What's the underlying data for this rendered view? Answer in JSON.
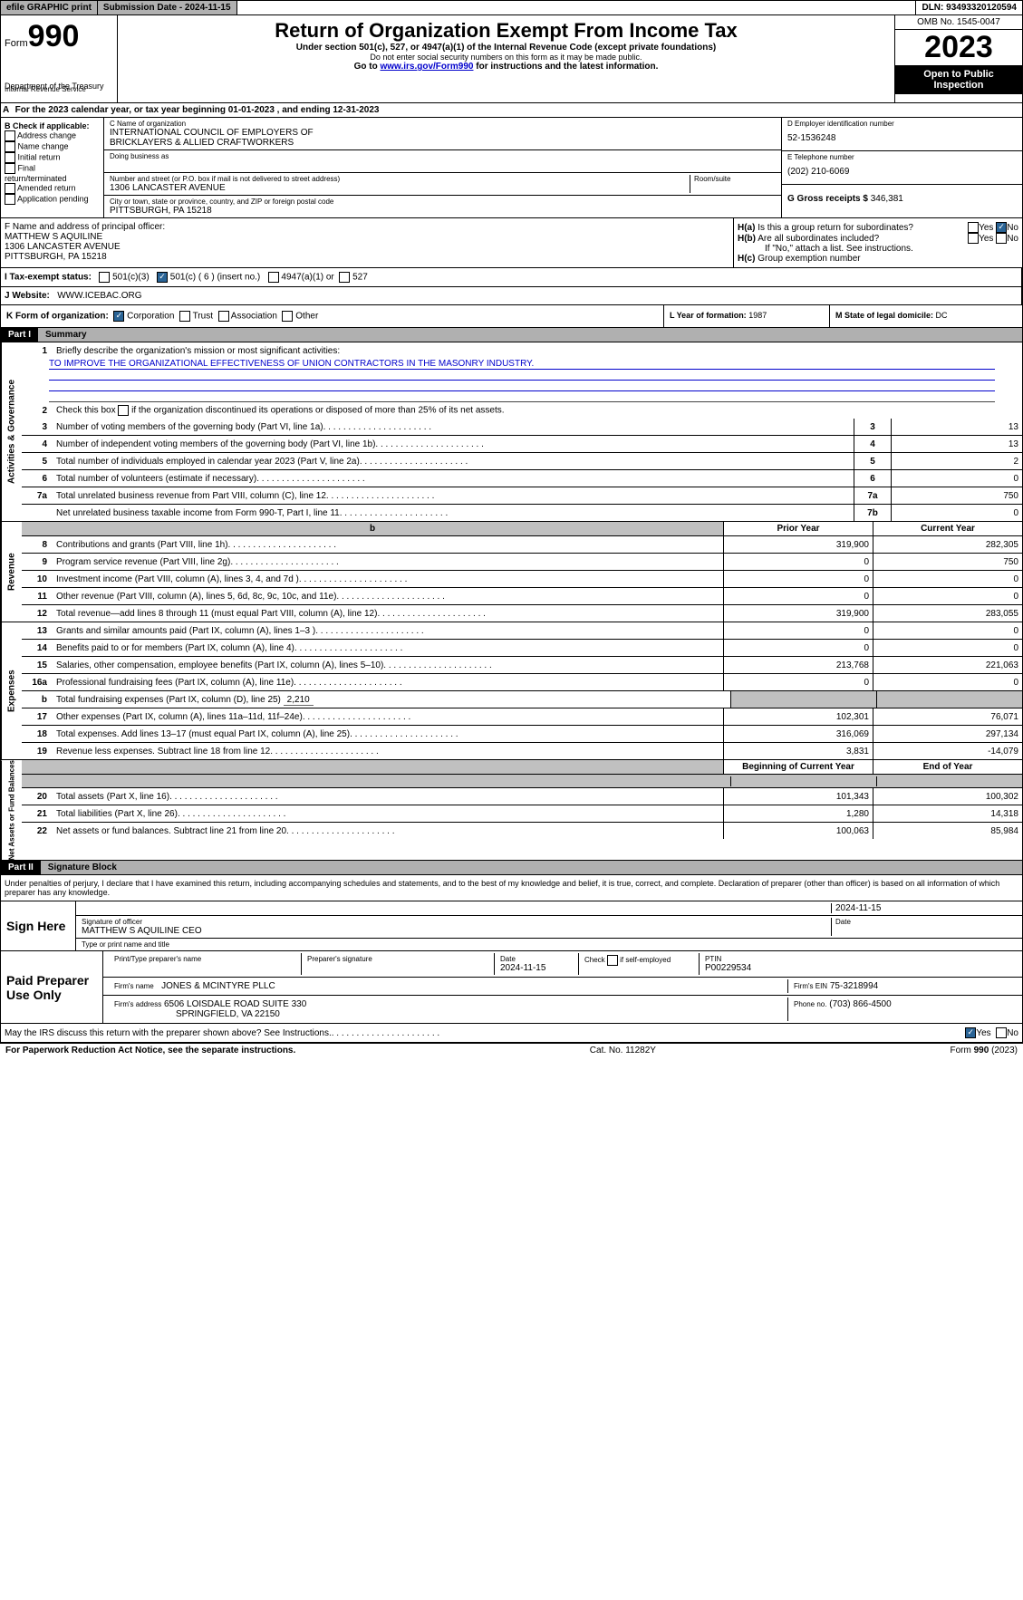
{
  "top_bar": {
    "efile": "efile GRAPHIC print",
    "submission": "Submission Date - 2024-11-15",
    "dln": "DLN: 93493320120594"
  },
  "header": {
    "form_word": "Form",
    "form_no": "990",
    "dept1": "Department of the Treasury",
    "dept2": "Internal Revenue Service",
    "title": "Return of Organization Exempt From Income Tax",
    "sub1": "Under section 501(c), 527, or 4947(a)(1) of the Internal Revenue Code (except private foundations)",
    "sub2": "Do not enter social security numbers on this form as it may be made public.",
    "sub3_pre": "Go to ",
    "sub3_link": "www.irs.gov/Form990",
    "sub3_post": " for instructions and the latest information.",
    "omb": "OMB No. 1545-0047",
    "year": "2023",
    "inspect": "Open to Public Inspection"
  },
  "row_a": {
    "text": "For the 2023 calendar year, or tax year beginning 01-01-2023    , and ending 12-31-2023",
    "a_label": "A"
  },
  "col_b": {
    "title": "B Check if applicable:",
    "items": [
      "Address change",
      "Name change",
      "Initial return",
      "Final return/terminated",
      "Amended return",
      "Application pending"
    ]
  },
  "col_c": {
    "c_label": "C Name of organization",
    "name1": "INTERNATIONAL COUNCIL OF EMPLOYERS OF",
    "name2": "BRICKLAYERS & ALLIED CRAFTWORKERS",
    "dba": "Doing business as",
    "addr_label": "Number and street (or P.O. box if mail is not delivered to street address)",
    "addr": "1306 LANCASTER AVENUE",
    "room_label": "Room/suite",
    "city_label": "City or town, state or province, country, and ZIP or foreign postal code",
    "city": "PITTSBURGH, PA  15218"
  },
  "col_de": {
    "d_label": "D Employer identification number",
    "ein": "52-1536248",
    "e_label": "E Telephone number",
    "phone": "(202) 210-6069",
    "g_label": "G Gross receipts $ ",
    "g_val": "346,381"
  },
  "col_f": {
    "label": "F  Name and address of principal officer:",
    "name": "MATTHEW S AQUILINE",
    "addr": "1306 LANCASTER AVENUE",
    "city": "PITTSBURGH, PA  15218"
  },
  "col_h": {
    "ha_label": "H(a)  Is this a group return for subordinates?",
    "hb_label": "H(b)  Are all subordinates included?",
    "hb_note": "If \"No,\" attach a list. See instructions.",
    "hc_label": "H(c)  Group exemption number",
    "yes": "Yes",
    "no": "No"
  },
  "row_i": {
    "label": "I    Tax-exempt status:",
    "o1": "501(c)(3)",
    "o2": "501(c) ( 6 ) (insert no.)",
    "o3": "4947(a)(1) or",
    "o4": "527"
  },
  "row_j": {
    "label": "J    Website:",
    "val": "WWW.ICEBAC.ORG"
  },
  "row_k": {
    "label": "K Form of organization:",
    "o1": "Corporation",
    "o2": "Trust",
    "o3": "Association",
    "o4": "Other"
  },
  "row_l": {
    "label": "L Year of formation: ",
    "val": "1987"
  },
  "row_m": {
    "label": "M State of legal domicile: ",
    "val": "DC"
  },
  "part1": {
    "part": "Part I",
    "title": "Summary",
    "line1_label": "Briefly describe the organization's mission or most significant activities:",
    "line1_val": "TO IMPROVE THE ORGANIZATIONAL EFFECTIVENESS OF UNION CONTRACTORS IN THE MASONRY INDUSTRY.",
    "line2": "Check this box          if the organization discontinued its operations or disposed of more than 25% of its net assets.",
    "lines_gov": [
      {
        "n": "3",
        "t": "Number of voting members of the governing body (Part VI, line 1a)",
        "box": "3",
        "v": "13"
      },
      {
        "n": "4",
        "t": "Number of independent voting members of the governing body (Part VI, line 1b)",
        "box": "4",
        "v": "13"
      },
      {
        "n": "5",
        "t": "Total number of individuals employed in calendar year 2023 (Part V, line 2a)",
        "box": "5",
        "v": "2"
      },
      {
        "n": "6",
        "t": "Total number of volunteers (estimate if necessary)",
        "box": "6",
        "v": "0"
      },
      {
        "n": "7a",
        "t": "Total unrelated business revenue from Part VIII, column (C), line 12",
        "box": "7a",
        "v": "750"
      },
      {
        "n": "",
        "t": "Net unrelated business taxable income from Form 990-T, Part I, line 11",
        "box": "7b",
        "v": "0"
      }
    ],
    "side_gov": "Activities & Governance",
    "side_rev": "Revenue",
    "side_exp": "Expenses",
    "side_net": "Net Assets or Fund Balances",
    "hdr_prior": "Prior Year",
    "hdr_curr": "Current Year",
    "lines_rev": [
      {
        "n": "8",
        "t": "Contributions and grants (Part VIII, line 1h)",
        "p": "319,900",
        "c": "282,305"
      },
      {
        "n": "9",
        "t": "Program service revenue (Part VIII, line 2g)",
        "p": "0",
        "c": "750"
      },
      {
        "n": "10",
        "t": "Investment income (Part VIII, column (A), lines 3, 4, and 7d )",
        "p": "0",
        "c": "0"
      },
      {
        "n": "11",
        "t": "Other revenue (Part VIII, column (A), lines 5, 6d, 8c, 9c, 10c, and 11e)",
        "p": "0",
        "c": "0"
      },
      {
        "n": "12",
        "t": "Total revenue—add lines 8 through 11 (must equal Part VIII, column (A), line 12)",
        "p": "319,900",
        "c": "283,055"
      }
    ],
    "lines_exp": [
      {
        "n": "13",
        "t": "Grants and similar amounts paid (Part IX, column (A), lines 1–3 )",
        "p": "0",
        "c": "0"
      },
      {
        "n": "14",
        "t": "Benefits paid to or for members (Part IX, column (A), line 4)",
        "p": "0",
        "c": "0"
      },
      {
        "n": "15",
        "t": "Salaries, other compensation, employee benefits (Part IX, column (A), lines 5–10)",
        "p": "213,768",
        "c": "221,063"
      },
      {
        "n": "16a",
        "t": "Professional fundraising fees (Part IX, column (A), line 11e)",
        "p": "0",
        "c": "0"
      }
    ],
    "line16b": {
      "n": "b",
      "t": "Total fundraising expenses (Part IX, column (D), line 25) ",
      "v": "2,210"
    },
    "lines_exp2": [
      {
        "n": "17",
        "t": "Other expenses (Part IX, column (A), lines 11a–11d, 11f–24e)",
        "p": "102,301",
        "c": "76,071"
      },
      {
        "n": "18",
        "t": "Total expenses. Add lines 13–17 (must equal Part IX, column (A), line 25)",
        "p": "316,069",
        "c": "297,134"
      },
      {
        "n": "19",
        "t": "Revenue less expenses. Subtract line 18 from line 12",
        "p": "3,831",
        "c": "-14,079"
      }
    ],
    "hdr_beg": "Beginning of Current Year",
    "hdr_end": "End of Year",
    "lines_net": [
      {
        "n": "20",
        "t": "Total assets (Part X, line 16)",
        "p": "101,343",
        "c": "100,302"
      },
      {
        "n": "21",
        "t": "Total liabilities (Part X, line 26)",
        "p": "1,280",
        "c": "14,318"
      },
      {
        "n": "22",
        "t": "Net assets or fund balances. Subtract line 21 from line 20",
        "p": "100,063",
        "c": "85,984"
      }
    ]
  },
  "part2": {
    "part": "Part II",
    "title": "Signature Block",
    "decl": "Under penalties of perjury, I declare that I have examined this return, including accompanying schedules and statements, and to the best of my knowledge and belief, it is true, correct, and complete. Declaration of preparer (other than officer) is based on all information of which preparer has any knowledge.",
    "sign_here": "Sign Here",
    "sig_officer": "Signature of officer",
    "sig_date": "Date",
    "sig_date_val": "2024-11-15",
    "officer_name": "MATTHEW S AQUILINE CEO",
    "type_name": "Type or print name and title",
    "paid": "Paid Preparer Use Only",
    "prep_name_lbl": "Print/Type preparer's name",
    "prep_sig_lbl": "Preparer's signature",
    "prep_date_lbl": "Date",
    "prep_date": "2024-11-15",
    "self_emp": "Check         if self-employed",
    "ptin_lbl": "PTIN",
    "ptin": "P00229534",
    "firm_name_lbl": "Firm's name",
    "firm_name": "JONES & MCINTYRE PLLC",
    "firm_ein_lbl": "Firm's EIN",
    "firm_ein": "75-3218994",
    "firm_addr_lbl": "Firm's address",
    "firm_addr1": "6506 LOISDALE ROAD SUITE 330",
    "firm_addr2": "SPRINGFIELD, VA  22150",
    "firm_phone_lbl": "Phone no.",
    "firm_phone": "(703) 866-4500",
    "discuss": "May the IRS discuss this return with the preparer shown above? See Instructions.",
    "yes": "Yes",
    "no": "No"
  },
  "footer": {
    "left": "For Paperwork Reduction Act Notice, see the separate instructions.",
    "center": "Cat. No. 11282Y",
    "right": "Form 990 (2023)"
  }
}
